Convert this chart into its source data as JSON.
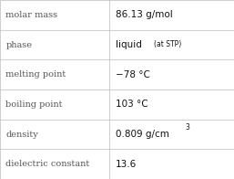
{
  "rows": [
    {
      "label": "molar mass",
      "value_plain": "86.13 g/mol",
      "type": "plain"
    },
    {
      "label": "phase",
      "value_plain": "liquid",
      "type": "phase",
      "main": "liquid",
      "sub": "(at STP)"
    },
    {
      "label": "melting point",
      "value_plain": "−78 °C",
      "type": "plain"
    },
    {
      "label": "boiling point",
      "value_plain": "103 °C",
      "type": "plain"
    },
    {
      "label": "density",
      "value_plain": "0.809 g/cm³",
      "type": "density",
      "main": "0.809 g/cm",
      "sup": "3"
    },
    {
      "label": "dielectric constant",
      "value_plain": "13.6",
      "type": "plain"
    }
  ],
  "bg_color": "#ffffff",
  "line_color": "#bbbbbb",
  "label_color": "#555555",
  "value_color": "#111111",
  "label_fontsize": 7.0,
  "value_fontsize": 7.5,
  "sub_fontsize": 5.5,
  "col_split": 0.465,
  "fig_width": 2.57,
  "fig_height": 1.96,
  "dpi": 100
}
